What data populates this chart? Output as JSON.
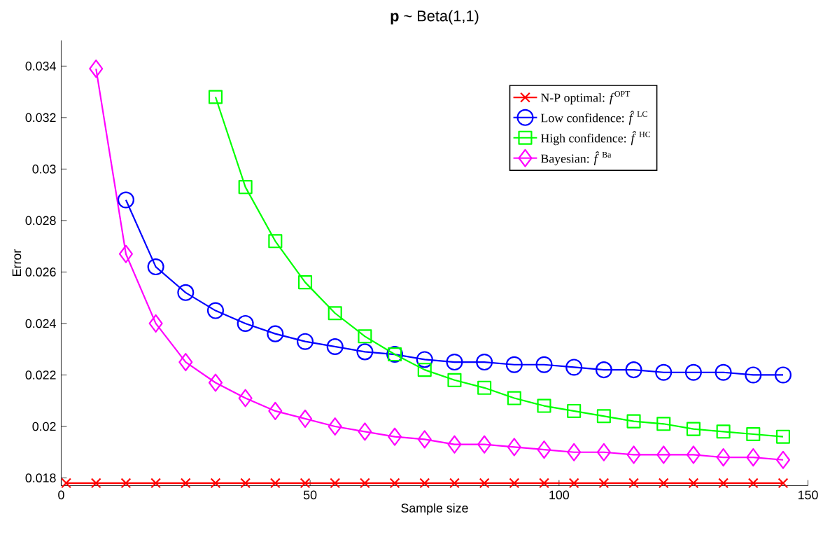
{
  "chart_data": {
    "type": "line",
    "title": "**p** ~ Beta(1,1)",
    "xlabel": "Sample size",
    "ylabel": "Error",
    "x": [
      1,
      7,
      13,
      19,
      25,
      31,
      37,
      43,
      49,
      55,
      61,
      67,
      73,
      79,
      85,
      91,
      97,
      103,
      109,
      115,
      121,
      127,
      133,
      139,
      145
    ],
    "series": [
      {
        "name": "N-P optimal: *f*$^{OPT}$",
        "color": "#ff0000",
        "marker": "cross",
        "values": [
          0.0178,
          0.0178,
          0.0178,
          0.0178,
          0.0178,
          0.0178,
          0.0178,
          0.0178,
          0.0178,
          0.0178,
          0.0178,
          0.0178,
          0.0178,
          0.0178,
          0.0178,
          0.0178,
          0.0178,
          0.0178,
          0.0178,
          0.0178,
          0.0178,
          0.0178,
          0.0178,
          0.0178,
          0.0178
        ]
      },
      {
        "name": "Low confidence: *f̂*$^{LC}$",
        "color": "#0000ff",
        "marker": "circle",
        "values": [
          null,
          null,
          0.0288,
          0.0262,
          0.0252,
          0.0245,
          0.024,
          0.0236,
          0.0233,
          0.0231,
          0.0229,
          0.0228,
          0.0226,
          0.0225,
          0.0225,
          0.0224,
          0.0224,
          0.0223,
          0.0222,
          0.0222,
          0.0221,
          0.0221,
          0.0221,
          0.022,
          0.022
        ]
      },
      {
        "name": "High confidence: *f̂*$^{HC}$",
        "color": "#00ff00",
        "marker": "square",
        "values": [
          null,
          null,
          null,
          null,
          null,
          0.0328,
          0.0293,
          0.0272,
          0.0256,
          0.0244,
          0.0235,
          0.0228,
          0.0222,
          0.0218,
          0.0215,
          0.0211,
          0.0208,
          0.0206,
          0.0204,
          0.0202,
          0.0201,
          0.0199,
          0.0198,
          0.0197,
          0.0196
        ]
      },
      {
        "name": "Bayesian: *f̂*$^{Ba}$",
        "color": "#ff00ff",
        "marker": "diamond",
        "values": [
          null,
          0.0339,
          0.0267,
          0.024,
          0.0225,
          0.0217,
          0.0211,
          0.0206,
          0.0203,
          0.02,
          0.0198,
          0.0196,
          0.0195,
          0.0193,
          0.0193,
          0.0192,
          0.0191,
          0.019,
          0.019,
          0.0189,
          0.0189,
          0.0189,
          0.0188,
          0.0188,
          0.0187
        ]
      }
    ],
    "xlim": [
      0,
      150
    ],
    "xticks": [
      0,
      50,
      100,
      150
    ],
    "ylim": [
      0.0177,
      0.035
    ],
    "yticks": [
      0.018,
      0.02,
      0.022,
      0.024,
      0.026,
      0.028,
      0.03,
      0.032,
      0.034
    ],
    "line_style": "solid",
    "legend": "top right"
  }
}
